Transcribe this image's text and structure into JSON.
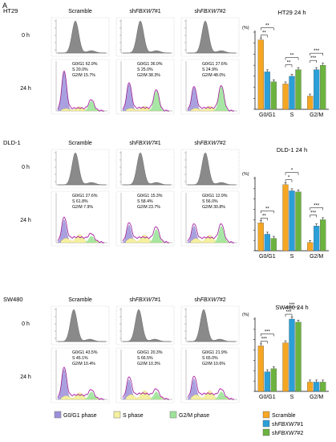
{
  "panel_letter": "A",
  "sections": [
    {
      "cell_line": "HT29",
      "columns": [
        "Scramble",
        "shFBXW7#1",
        "shFBXW7#2"
      ],
      "row_labels": [
        "0 h",
        "24 h"
      ],
      "stats": [
        {
          "g0g1": "G0/G1  62.9%",
          "s": "S       20.0%",
          "g2m": "G2/M  15.7%"
        },
        {
          "g0g1": "G0/G1  36.0%",
          "s": "S       25.0%",
          "g2m": "G2/M  38.3%"
        },
        {
          "g0g1": "G0/G1  27.6%",
          "s": "S       24.9%",
          "g2m": "G2/M  48.0%"
        }
      ]
    },
    {
      "cell_line": "DLD-1",
      "columns": [
        "Scramble",
        "shFBXW7#1",
        "shFBXW7#2"
      ],
      "row_labels": [
        "0 h",
        "24 h"
      ],
      "stats": [
        {
          "g0g1": "G0/G1  27.6%",
          "s": "S       61.8%",
          "g2m": "G2/M    7.9%"
        },
        {
          "g0g1": "G0/G1  15.3%",
          "s": "S       58.4%",
          "g2m": "G2/M  23.7%"
        },
        {
          "g0g1": "G0/G1  12.9%",
          "s": "S       56.0%",
          "g2m": "G2/M  30.8%"
        }
      ]
    },
    {
      "cell_line": "SW480",
      "columns": [
        "Scramble",
        "shFBXW7#1",
        "shFBXW7#2"
      ],
      "row_labels": [
        "0 h",
        "24 h"
      ],
      "stats": [
        {
          "g0g1": "G0/G1  43.5%",
          "s": "S       45.1%",
          "g2m": "G2/M  10.4%"
        },
        {
          "g0g1": "G0/G1  20.3%",
          "s": "S       66.5%",
          "g2m": "G2/M  10.3%"
        },
        {
          "g0g1": "G0/G1  21.9%",
          "s": "S       65.0%",
          "g2m": "G2/M  10.6%"
        }
      ]
    }
  ],
  "phase_legend": [
    "G0/G1 phase",
    "S phase",
    "G2/M phase"
  ],
  "bar_legend": [
    "Scramble",
    "shFBXW7#1",
    "shFBXW7#2"
  ],
  "colors": {
    "scramble": "#f5a623",
    "sh1": "#2a9fd8",
    "sh2": "#6db33f",
    "g0g1_fill": "#9b8fd9",
    "s_fill": "#f5f0a0",
    "g2m_fill": "#9de39a",
    "histogram_gray": "#8a8a8a",
    "magenta_line": "#d21cc9"
  },
  "chart_data": [
    {
      "type": "bar",
      "title": "HT29  24 h",
      "ylabel": "(%)",
      "ylim": [
        0,
        70
      ],
      "categories": [
        "G0/G1",
        "S",
        "G2/M"
      ],
      "series": [
        {
          "name": "Scramble",
          "values": [
            63,
            23,
            12
          ]
        },
        {
          "name": "shFBXW7#1",
          "values": [
            34,
            30,
            36
          ]
        },
        {
          "name": "shFBXW7#2",
          "values": [
            25,
            36,
            40
          ]
        }
      ],
      "significance": [
        {
          "group": "G0/G1",
          "labels": [
            "**",
            "**"
          ]
        },
        {
          "group": "S",
          "labels": [
            "**",
            "**"
          ]
        },
        {
          "group": "G2/M",
          "labels": [
            "***",
            "***"
          ]
        }
      ]
    },
    {
      "type": "bar",
      "title": "DLD-1  24 h",
      "ylabel": "(%)",
      "ylim": [
        0,
        70
      ],
      "categories": [
        "G0/G1",
        "S",
        "G2/M"
      ],
      "series": [
        {
          "name": "Scramble",
          "values": [
            27,
            64,
            8
          ]
        },
        {
          "name": "shFBXW7#1",
          "values": [
            16,
            58,
            24
          ]
        },
        {
          "name": "shFBXW7#2",
          "values": [
            12,
            57,
            30
          ]
        }
      ],
      "significance": [
        {
          "group": "G0/G1",
          "labels": [
            "**",
            "**"
          ]
        },
        {
          "group": "S",
          "labels": [
            "*",
            "*"
          ]
        },
        {
          "group": "G2/M",
          "labels": [
            "***",
            "***"
          ]
        }
      ]
    },
    {
      "type": "bar",
      "title": "SW480  24 h",
      "ylabel": "(%)",
      "ylim": [
        0,
        70
      ],
      "categories": [
        "G0/G1",
        "S",
        "G2/M"
      ],
      "series": [
        {
          "name": "Scramble",
          "values": [
            44,
            47,
            9
          ]
        },
        {
          "name": "shFBXW7#1",
          "values": [
            19,
            70,
            9
          ]
        },
        {
          "name": "shFBXW7#2",
          "values": [
            22,
            67,
            9
          ]
        }
      ],
      "significance": [
        {
          "group": "G0/G1",
          "labels": [
            "***",
            "***"
          ]
        },
        {
          "group": "S",
          "labels": [
            "***",
            "***"
          ]
        },
        {
          "group": "G2/M",
          "labels": []
        }
      ]
    }
  ]
}
